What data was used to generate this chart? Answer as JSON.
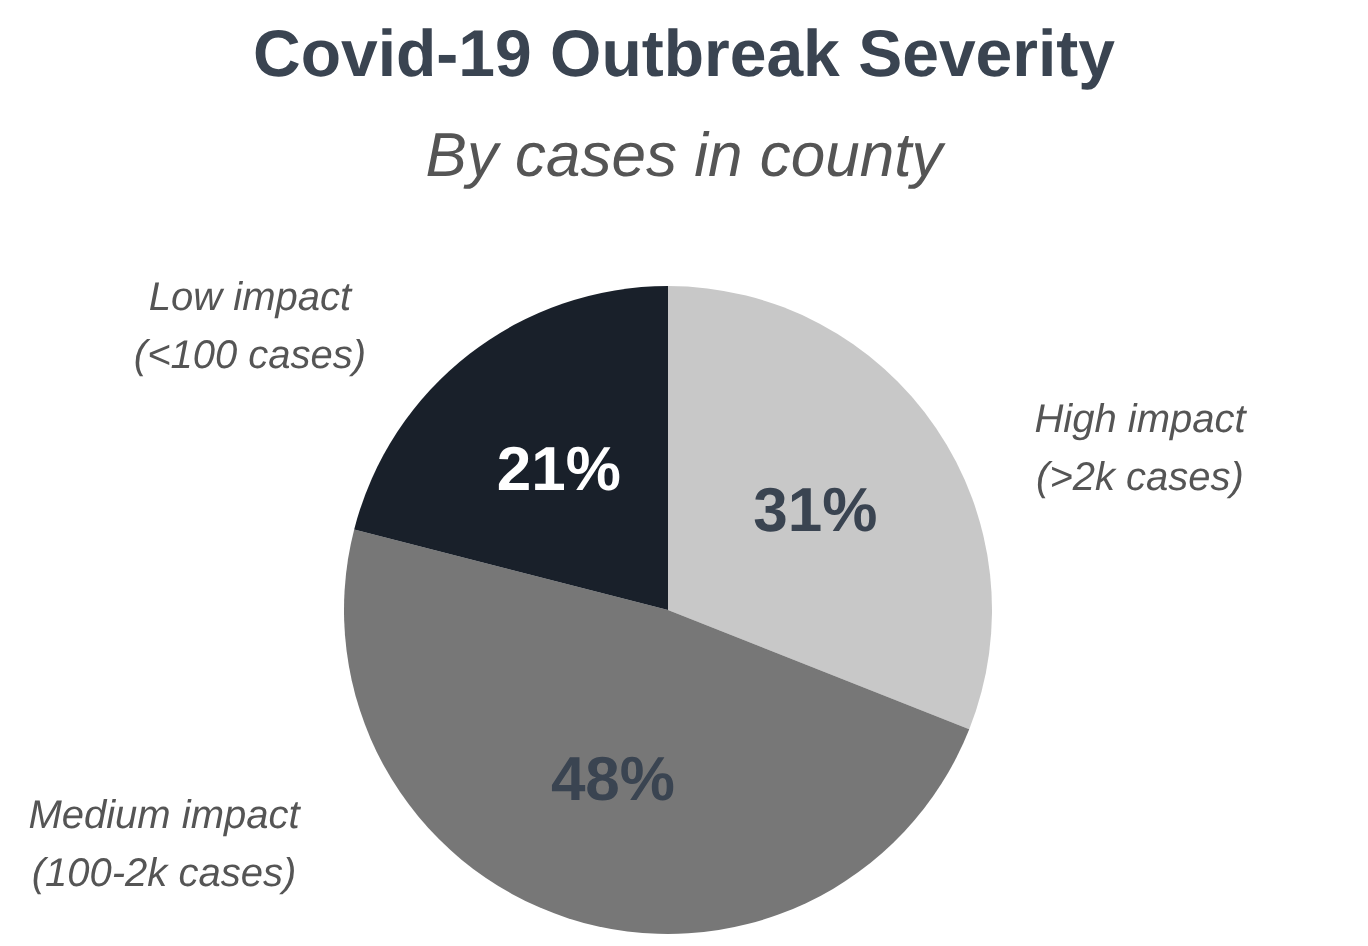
{
  "chart_data": {
    "type": "pie",
    "title": "Covid-19 Outbreak Severity",
    "subtitle": "By cases in county",
    "categories": [
      "High impact (>2k cases)",
      "Medium impact (100-2k cases)",
      "Low impact (<100 cases)"
    ],
    "values": [
      31,
      48,
      21
    ],
    "colors": [
      "#c8c8c8",
      "#777777",
      "#19202a"
    ],
    "value_labels": [
      "31%",
      "48%",
      "21%"
    ],
    "legend": false
  }
}
